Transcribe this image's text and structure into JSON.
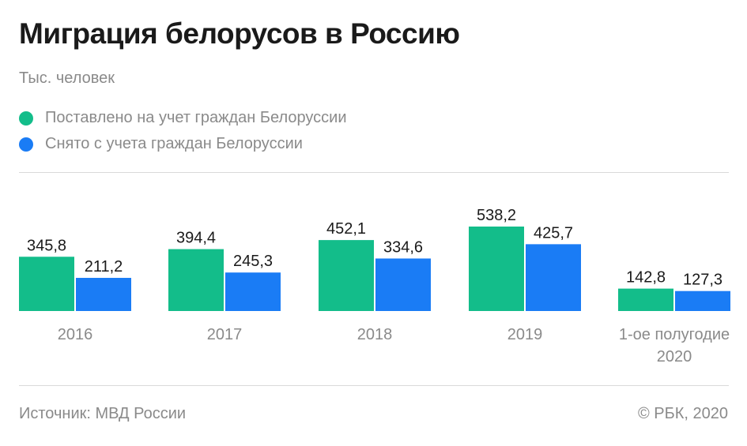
{
  "header": {
    "title": "Миграция белорусов в Россию",
    "subtitle": "Тыс. человек"
  },
  "legend": [
    {
      "label": "Поставлено на учет граждан Белоруссии",
      "color": "#13bd8a"
    },
    {
      "label": "Снято с учета граждан Белоруссии",
      "color": "#1a7cf5"
    }
  ],
  "footer": {
    "source": "Источник: МВД России",
    "copyright": "© РБК, 2020"
  },
  "chart_data": {
    "type": "bar",
    "categories": [
      [
        "2016"
      ],
      [
        "2017"
      ],
      [
        "2018"
      ],
      [
        "2019"
      ],
      [
        "1-ое полугодие",
        "2020"
      ]
    ],
    "series": [
      {
        "name": "Поставлено на учет граждан Белоруссии",
        "color": "#13bd8a",
        "values": [
          345.8,
          394.4,
          452.1,
          538.2,
          142.8
        ],
        "labels": [
          "345,8",
          "394,4",
          "452,1",
          "538,2",
          "142,8"
        ]
      },
      {
        "name": "Снято с учета граждан Белоруссии",
        "color": "#1a7cf5",
        "values": [
          211.2,
          245.3,
          334.6,
          425.7,
          127.3
        ],
        "labels": [
          "211,2",
          "245,3",
          "334,6",
          "425,7",
          "127,3"
        ]
      }
    ],
    "ylim": [
      0,
      538.2
    ],
    "grid": false,
    "legend_position": "top-left"
  }
}
